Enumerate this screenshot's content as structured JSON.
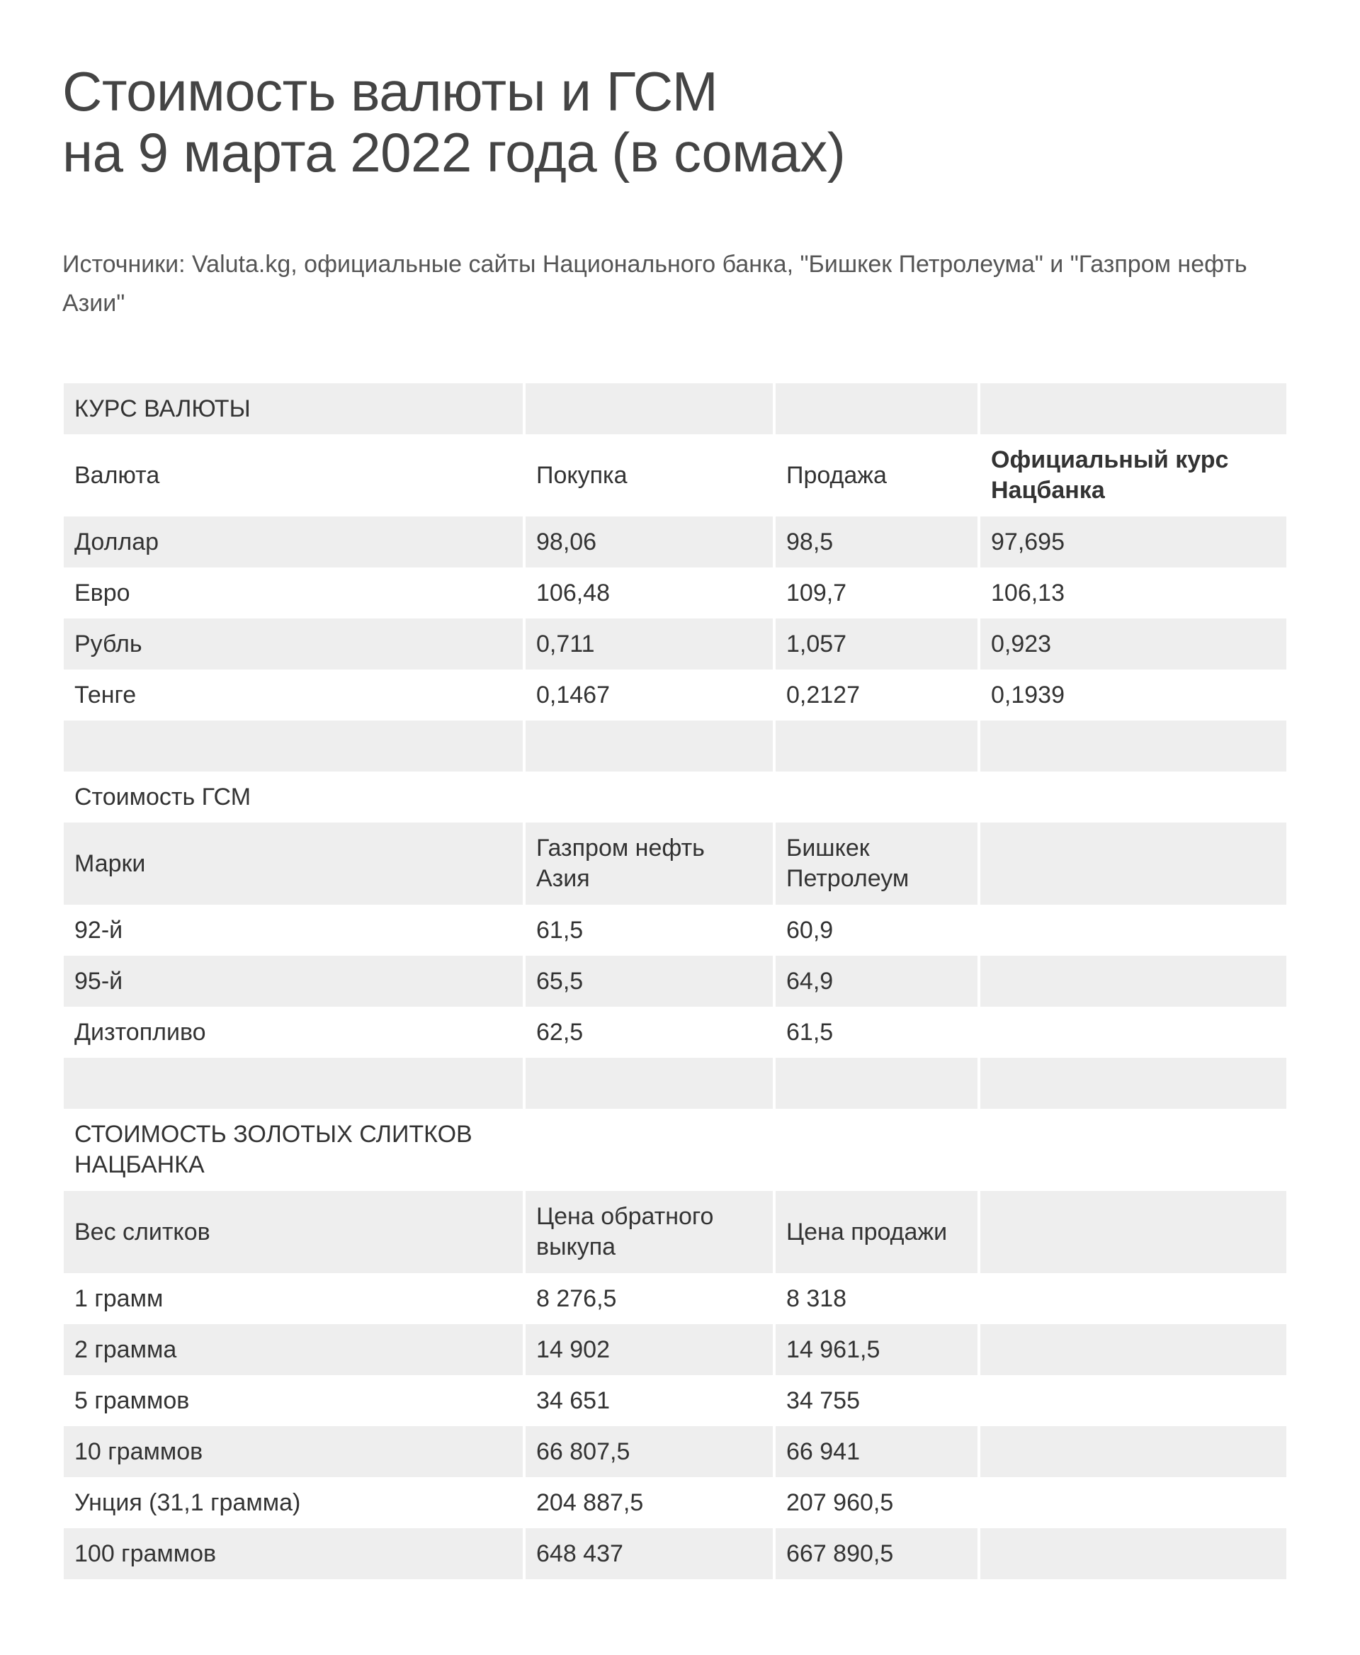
{
  "title": {
    "line1": "Стоимость валюты и ГСМ",
    "line2": "на 9 марта 2022 года (в сомах)"
  },
  "source": "Источники: Valuta.kg, официальные сайты Национального банка, \"Бишкек Петролеума\" и \"Газпром нефть Азии\"",
  "rows": [
    {
      "cells": [
        "КУРС ВАЛЮТЫ",
        "",
        "",
        ""
      ]
    },
    {
      "cells": [
        "Валюта",
        "Покупка",
        "Продажа",
        "Официальный курс Нацбанка"
      ],
      "two": true
    },
    {
      "cells": [
        "Доллар",
        "98,06",
        "98,5",
        "97,695"
      ]
    },
    {
      "cells": [
        "Евро",
        "106,48",
        "109,7",
        "106,13"
      ]
    },
    {
      "cells": [
        "Рубль",
        "0,711",
        "1,057",
        "0,923"
      ]
    },
    {
      "cells": [
        "Тенге",
        "0,1467",
        "0,2127",
        "0,1939"
      ]
    },
    {
      "cells": [
        "",
        "",
        "",
        ""
      ]
    },
    {
      "cells": [
        "Стоимость ГСМ",
        "",
        "",
        ""
      ]
    },
    {
      "cells": [
        "Марки",
        "Газпром нефть Азия",
        "Бишкек Петролеум",
        ""
      ],
      "two": true
    },
    {
      "cells": [
        "92-й",
        "61,5",
        "60,9",
        ""
      ]
    },
    {
      "cells": [
        "95-й",
        "65,5",
        "64,9",
        ""
      ]
    },
    {
      "cells": [
        "Дизтопливо",
        "62,5",
        "61,5",
        ""
      ]
    },
    {
      "cells": [
        "",
        "",
        "",
        ""
      ]
    },
    {
      "cells": [
        "СТОИМОСТЬ ЗОЛОТЫХ СЛИТКОВ НАЦБАНКА",
        "",
        "",
        ""
      ],
      "two": true
    },
    {
      "cells": [
        "Вес слитков",
        "Цена обратного выкупа",
        "Цена продажи",
        ""
      ],
      "two": true
    },
    {
      "cells": [
        "1 грамм",
        "8 276,5",
        "8 318",
        ""
      ]
    },
    {
      "cells": [
        "2 грамма",
        "14 902",
        "14 961,5",
        ""
      ]
    },
    {
      "cells": [
        "5 граммов",
        "34 651",
        "34 755",
        ""
      ]
    },
    {
      "cells": [
        "10 граммов",
        "66 807,5",
        "66 941",
        ""
      ]
    },
    {
      "cells": [
        "Унция (31,1 грамма)",
        "204 887,5",
        "207 960,5",
        ""
      ]
    },
    {
      "cells": [
        "100 граммов",
        "648 437",
        "667 890,5",
        ""
      ]
    }
  ],
  "colors": {
    "stripe": "#eeeeee",
    "text": "#333333"
  }
}
